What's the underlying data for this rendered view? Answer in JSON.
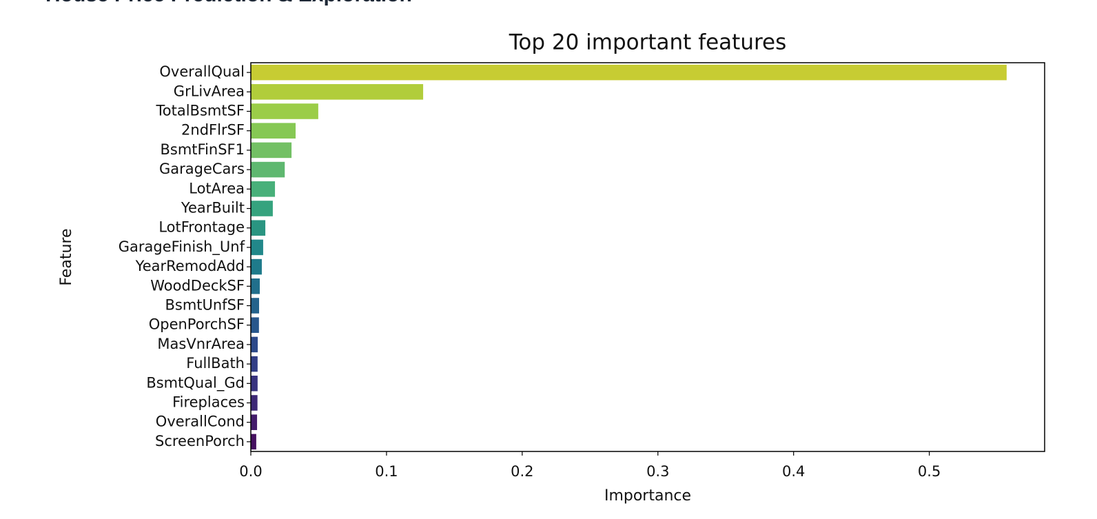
{
  "header": {
    "title": "House Price Prediction & Exploration"
  },
  "chart_data": {
    "type": "barh",
    "title": "Top 20 important features",
    "x_label": "Importance",
    "y_label": "Feature",
    "categories": [
      "OverallQual",
      "GrLivArea",
      "TotalBsmtSF",
      "2ndFlrSF",
      "BsmtFinSF1",
      "GarageCars",
      "LotArea",
      "YearBuilt",
      "LotFrontage",
      "GarageFinish_Unf",
      "YearRemodAdd",
      "WoodDeckSF",
      "BsmtUnfSF",
      "OpenPorchSF",
      "MasVnrArea",
      "FullBath",
      "BsmtQual_Gd",
      "Fireplaces",
      "OverallCond",
      "ScreenPorch"
    ],
    "values": [
      0.557,
      0.127,
      0.0497,
      0.033,
      0.03,
      0.025,
      0.0178,
      0.0162,
      0.0107,
      0.0091,
      0.0081,
      0.0066,
      0.0061,
      0.006,
      0.0051,
      0.005,
      0.005,
      0.0049,
      0.0046,
      0.004
    ],
    "colors": [
      "#c7cc33",
      "#b1cd3b",
      "#9bcd48",
      "#86c854",
      "#73c064",
      "#5fb870",
      "#48b07a",
      "#35a37e",
      "#2a9581",
      "#22888a",
      "#1f7b8b",
      "#216f8c",
      "#24638c",
      "#28578c",
      "#2d4a8a",
      "#323e86",
      "#38337f",
      "#3d2876",
      "#431c6b",
      "#451060"
    ],
    "xlim": [
      0,
      0.585
    ],
    "xticks": [
      {
        "value": 0,
        "label": "0.0"
      },
      0.1,
      0.2,
      0.3,
      0.4,
      0.5
    ],
    "grid": false
  }
}
